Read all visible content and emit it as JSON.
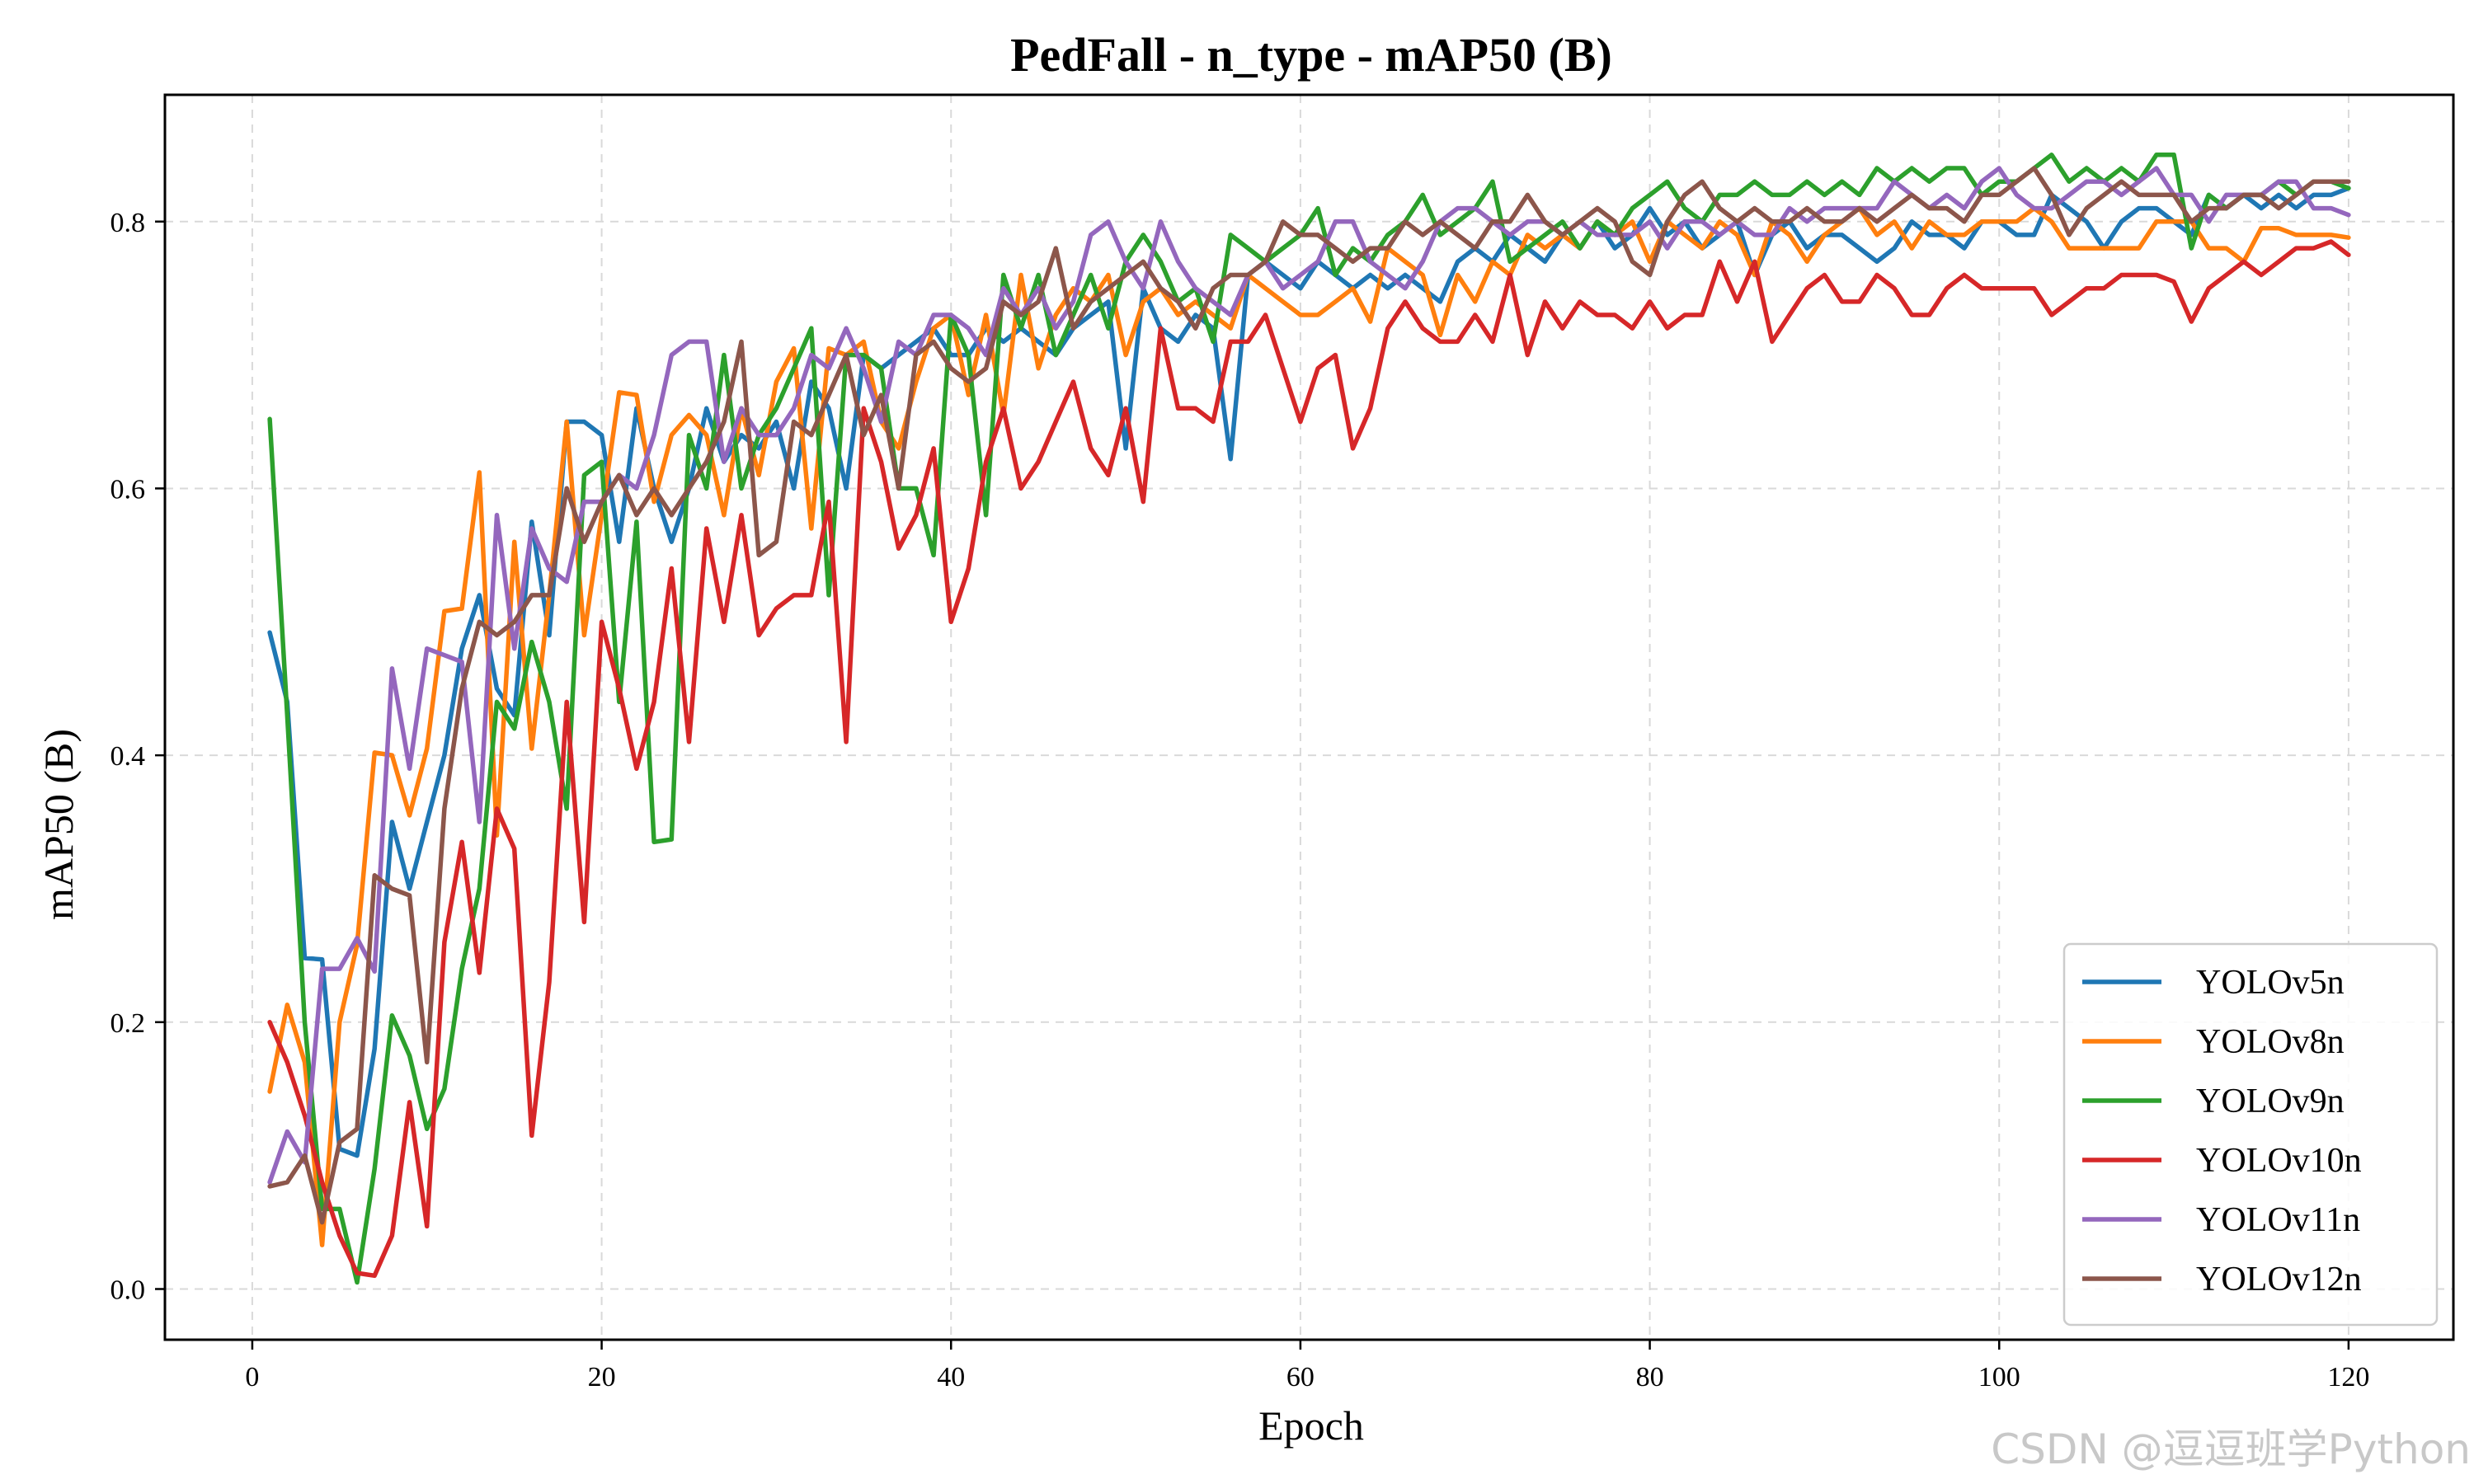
{
  "watermark": "CSDN @逗逗班学Python",
  "chart_data": {
    "type": "line",
    "title": "PedFall - n_type - mAP50 (B)",
    "xlabel": "Epoch",
    "ylabel": "mAP50 (B)",
    "xlim": [
      -5,
      126
    ],
    "ylim": [
      -0.038,
      0.895
    ],
    "xticks": [
      0,
      20,
      40,
      60,
      80,
      100,
      120
    ],
    "yticks": [
      0.0,
      0.2,
      0.4,
      0.6,
      0.8
    ],
    "xtick_labels": [
      "0",
      "20",
      "40",
      "60",
      "80",
      "100",
      "120"
    ],
    "ytick_labels": [
      "0.0",
      "0.2",
      "0.4",
      "0.6",
      "0.8"
    ],
    "grid": true,
    "legend_position": "lower-right",
    "x": [
      1,
      2,
      3,
      4,
      5,
      6,
      7,
      8,
      9,
      10,
      11,
      12,
      13,
      14,
      15,
      16,
      17,
      18,
      19,
      20,
      21,
      22,
      23,
      24,
      25,
      26,
      27,
      28,
      29,
      30,
      31,
      32,
      33,
      34,
      35,
      36,
      37,
      38,
      39,
      40,
      41,
      42,
      43,
      44,
      45,
      46,
      47,
      48,
      49,
      50,
      51,
      52,
      53,
      54,
      55,
      56,
      57,
      58,
      59,
      60,
      61,
      62,
      63,
      64,
      65,
      66,
      67,
      68,
      69,
      70,
      71,
      72,
      73,
      74,
      75,
      76,
      77,
      78,
      79,
      80,
      81,
      82,
      83,
      84,
      85,
      86,
      87,
      88,
      89,
      90,
      91,
      92,
      93,
      94,
      95,
      96,
      97,
      98,
      99,
      100,
      101,
      102,
      103,
      104,
      105,
      106,
      107,
      108,
      109,
      110,
      111,
      112,
      113,
      114,
      115,
      116,
      117,
      118,
      119,
      120
    ],
    "series": [
      {
        "name": "YOLOv5n",
        "color": "#1f77b4",
        "values": [
          0.492,
          0.44,
          0.248,
          0.247,
          0.105,
          0.1,
          0.18,
          0.35,
          0.3,
          0.35,
          0.4,
          0.48,
          0.52,
          0.45,
          0.43,
          0.575,
          0.49,
          0.65,
          0.65,
          0.64,
          0.56,
          0.66,
          0.6,
          0.56,
          0.6,
          0.66,
          0.62,
          0.64,
          0.63,
          0.65,
          0.6,
          0.68,
          0.66,
          0.6,
          0.7,
          0.69,
          0.7,
          0.71,
          0.72,
          0.7,
          0.7,
          0.72,
          0.71,
          0.72,
          0.71,
          0.7,
          0.72,
          0.73,
          0.74,
          0.63,
          0.75,
          0.72,
          0.71,
          0.73,
          0.72,
          0.622,
          0.76,
          0.77,
          0.76,
          0.75,
          0.77,
          0.76,
          0.75,
          0.76,
          0.75,
          0.76,
          0.75,
          0.74,
          0.77,
          0.78,
          0.77,
          0.79,
          0.78,
          0.77,
          0.79,
          0.78,
          0.8,
          0.78,
          0.79,
          0.81,
          0.79,
          0.8,
          0.78,
          0.79,
          0.8,
          0.76,
          0.79,
          0.8,
          0.78,
          0.79,
          0.79,
          0.78,
          0.77,
          0.78,
          0.8,
          0.79,
          0.79,
          0.78,
          0.8,
          0.8,
          0.79,
          0.79,
          0.82,
          0.81,
          0.8,
          0.78,
          0.8,
          0.81,
          0.81,
          0.8,
          0.79,
          0.82,
          0.81,
          0.82,
          0.81,
          0.82,
          0.81,
          0.82,
          0.82,
          0.825
        ]
      },
      {
        "name": "YOLOv8n",
        "color": "#ff7f0e",
        "values": [
          0.148,
          0.213,
          0.17,
          0.033,
          0.2,
          0.258,
          0.402,
          0.4,
          0.355,
          0.405,
          0.508,
          0.51,
          0.612,
          0.34,
          0.56,
          0.405,
          0.52,
          0.65,
          0.49,
          0.58,
          0.672,
          0.67,
          0.59,
          0.64,
          0.655,
          0.64,
          0.58,
          0.66,
          0.61,
          0.68,
          0.705,
          0.57,
          0.705,
          0.7,
          0.71,
          0.65,
          0.63,
          0.68,
          0.72,
          0.73,
          0.67,
          0.73,
          0.655,
          0.76,
          0.69,
          0.73,
          0.75,
          0.74,
          0.76,
          0.7,
          0.74,
          0.75,
          0.73,
          0.74,
          0.73,
          0.72,
          0.76,
          0.75,
          0.74,
          0.73,
          0.73,
          0.74,
          0.75,
          0.725,
          0.78,
          0.77,
          0.76,
          0.715,
          0.76,
          0.74,
          0.77,
          0.76,
          0.79,
          0.78,
          0.79,
          0.78,
          0.8,
          0.79,
          0.8,
          0.77,
          0.8,
          0.79,
          0.78,
          0.8,
          0.79,
          0.76,
          0.8,
          0.79,
          0.77,
          0.79,
          0.8,
          0.81,
          0.79,
          0.8,
          0.78,
          0.8,
          0.79,
          0.79,
          0.8,
          0.8,
          0.8,
          0.81,
          0.8,
          0.78,
          0.78,
          0.78,
          0.78,
          0.78,
          0.8,
          0.8,
          0.8,
          0.78,
          0.78,
          0.77,
          0.795,
          0.795,
          0.79,
          0.79,
          0.79,
          0.788
        ]
      },
      {
        "name": "YOLOv9n",
        "color": "#2ca02c",
        "values": [
          0.652,
          0.43,
          0.2,
          0.06,
          0.06,
          0.005,
          0.09,
          0.205,
          0.175,
          0.12,
          0.15,
          0.24,
          0.3,
          0.44,
          0.42,
          0.485,
          0.44,
          0.36,
          0.61,
          0.62,
          0.44,
          0.575,
          0.335,
          0.337,
          0.64,
          0.6,
          0.7,
          0.6,
          0.64,
          0.66,
          0.69,
          0.72,
          0.52,
          0.7,
          0.7,
          0.69,
          0.6,
          0.6,
          0.55,
          0.73,
          0.7,
          0.58,
          0.76,
          0.72,
          0.76,
          0.7,
          0.73,
          0.76,
          0.72,
          0.77,
          0.79,
          0.77,
          0.74,
          0.75,
          0.71,
          0.79,
          0.78,
          0.77,
          0.78,
          0.79,
          0.81,
          0.76,
          0.78,
          0.77,
          0.79,
          0.8,
          0.82,
          0.79,
          0.8,
          0.81,
          0.83,
          0.77,
          0.78,
          0.79,
          0.8,
          0.78,
          0.8,
          0.79,
          0.81,
          0.82,
          0.83,
          0.81,
          0.8,
          0.82,
          0.82,
          0.83,
          0.82,
          0.82,
          0.83,
          0.82,
          0.83,
          0.82,
          0.84,
          0.83,
          0.84,
          0.83,
          0.84,
          0.84,
          0.82,
          0.83,
          0.83,
          0.84,
          0.85,
          0.83,
          0.84,
          0.83,
          0.84,
          0.83,
          0.85,
          0.85,
          0.78,
          0.82,
          0.81,
          0.82,
          0.82,
          0.83,
          0.82,
          0.83,
          0.83,
          0.825
        ]
      },
      {
        "name": "YOLOv10n",
        "color": "#d62728",
        "values": [
          0.2,
          0.17,
          0.13,
          0.08,
          0.04,
          0.012,
          0.01,
          0.04,
          0.14,
          0.047,
          0.26,
          0.335,
          0.237,
          0.36,
          0.33,
          0.115,
          0.23,
          0.44,
          0.275,
          0.5,
          0.45,
          0.39,
          0.44,
          0.54,
          0.41,
          0.57,
          0.5,
          0.58,
          0.49,
          0.51,
          0.52,
          0.52,
          0.59,
          0.41,
          0.66,
          0.62,
          0.555,
          0.58,
          0.63,
          0.5,
          0.54,
          0.62,
          0.66,
          0.6,
          0.62,
          0.65,
          0.68,
          0.63,
          0.61,
          0.66,
          0.59,
          0.72,
          0.66,
          0.66,
          0.65,
          0.71,
          0.71,
          0.73,
          0.69,
          0.65,
          0.69,
          0.7,
          0.63,
          0.66,
          0.72,
          0.74,
          0.72,
          0.71,
          0.71,
          0.73,
          0.71,
          0.76,
          0.7,
          0.74,
          0.72,
          0.74,
          0.73,
          0.73,
          0.72,
          0.74,
          0.72,
          0.73,
          0.73,
          0.77,
          0.74,
          0.77,
          0.71,
          0.73,
          0.75,
          0.76,
          0.74,
          0.74,
          0.76,
          0.75,
          0.73,
          0.73,
          0.75,
          0.76,
          0.75,
          0.75,
          0.75,
          0.75,
          0.73,
          0.74,
          0.75,
          0.75,
          0.76,
          0.76,
          0.76,
          0.755,
          0.725,
          0.75,
          0.76,
          0.77,
          0.76,
          0.77,
          0.78,
          0.78,
          0.785,
          0.775
        ]
      },
      {
        "name": "YOLOv11n",
        "color": "#9467bd",
        "values": [
          0.08,
          0.118,
          0.095,
          0.24,
          0.24,
          0.263,
          0.238,
          0.465,
          0.39,
          0.48,
          0.475,
          0.47,
          0.35,
          0.58,
          0.48,
          0.57,
          0.54,
          0.53,
          0.59,
          0.59,
          0.61,
          0.6,
          0.64,
          0.7,
          0.71,
          0.71,
          0.62,
          0.66,
          0.64,
          0.64,
          0.66,
          0.7,
          0.69,
          0.72,
          0.69,
          0.65,
          0.71,
          0.7,
          0.73,
          0.73,
          0.72,
          0.7,
          0.75,
          0.73,
          0.75,
          0.72,
          0.74,
          0.79,
          0.8,
          0.77,
          0.75,
          0.8,
          0.77,
          0.75,
          0.74,
          0.73,
          0.76,
          0.77,
          0.75,
          0.76,
          0.77,
          0.8,
          0.8,
          0.77,
          0.76,
          0.75,
          0.77,
          0.8,
          0.81,
          0.81,
          0.8,
          0.79,
          0.8,
          0.8,
          0.79,
          0.8,
          0.79,
          0.79,
          0.79,
          0.8,
          0.78,
          0.8,
          0.8,
          0.79,
          0.8,
          0.79,
          0.79,
          0.81,
          0.8,
          0.81,
          0.81,
          0.81,
          0.81,
          0.83,
          0.82,
          0.81,
          0.82,
          0.81,
          0.83,
          0.84,
          0.82,
          0.81,
          0.81,
          0.82,
          0.83,
          0.83,
          0.82,
          0.83,
          0.84,
          0.82,
          0.82,
          0.8,
          0.82,
          0.82,
          0.82,
          0.83,
          0.83,
          0.81,
          0.81,
          0.805
        ]
      },
      {
        "name": "YOLOv12n",
        "color": "#8c564b",
        "values": [
          0.077,
          0.08,
          0.1,
          0.05,
          0.11,
          0.12,
          0.31,
          0.3,
          0.295,
          0.17,
          0.36,
          0.45,
          0.5,
          0.49,
          0.5,
          0.52,
          0.52,
          0.6,
          0.56,
          0.59,
          0.61,
          0.58,
          0.6,
          0.58,
          0.6,
          0.62,
          0.65,
          0.71,
          0.55,
          0.56,
          0.65,
          0.64,
          0.67,
          0.7,
          0.64,
          0.67,
          0.6,
          0.7,
          0.71,
          0.69,
          0.68,
          0.69,
          0.74,
          0.73,
          0.74,
          0.78,
          0.72,
          0.74,
          0.75,
          0.76,
          0.77,
          0.75,
          0.74,
          0.72,
          0.75,
          0.76,
          0.76,
          0.77,
          0.8,
          0.79,
          0.79,
          0.78,
          0.77,
          0.78,
          0.78,
          0.8,
          0.79,
          0.8,
          0.79,
          0.78,
          0.8,
          0.8,
          0.82,
          0.8,
          0.79,
          0.8,
          0.81,
          0.8,
          0.77,
          0.76,
          0.8,
          0.82,
          0.83,
          0.81,
          0.8,
          0.81,
          0.8,
          0.8,
          0.81,
          0.8,
          0.8,
          0.81,
          0.8,
          0.81,
          0.82,
          0.81,
          0.81,
          0.8,
          0.82,
          0.82,
          0.83,
          0.84,
          0.82,
          0.79,
          0.81,
          0.82,
          0.83,
          0.82,
          0.82,
          0.82,
          0.8,
          0.81,
          0.81,
          0.82,
          0.82,
          0.81,
          0.82,
          0.83,
          0.83,
          0.83
        ]
      }
    ]
  }
}
